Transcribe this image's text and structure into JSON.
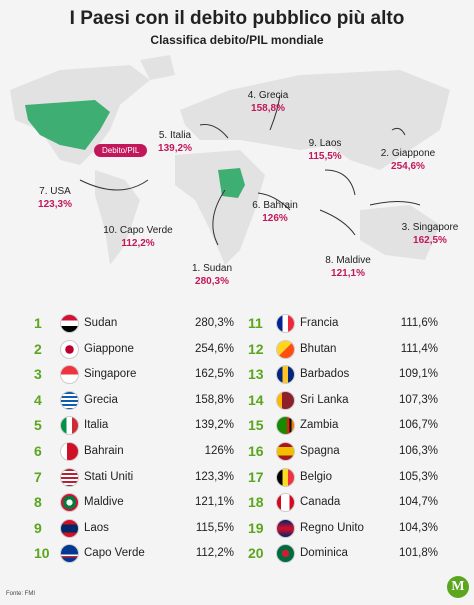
{
  "header": {
    "title": "I Paesi con il debito pubblico più alto",
    "subtitle": "Classifica debito/PIL mondiale"
  },
  "map": {
    "legend": "Debito/PIL",
    "labels": [
      {
        "name": "1. Sudan",
        "value": "280,3%"
      },
      {
        "name": "2. Giappone",
        "value": "254,6%"
      },
      {
        "name": "3. Singapore",
        "value": "162,5%"
      },
      {
        "name": "4. Grecia",
        "value": "158,8%"
      },
      {
        "name": "5. Italia",
        "value": "139,2%"
      },
      {
        "name": "6. Bahrain",
        "value": "126%"
      },
      {
        "name": "7. USA",
        "value": "123,3%"
      },
      {
        "name": "8. Maldive",
        "value": "121,1%"
      },
      {
        "name": "9. Laos",
        "value": "115,5%"
      },
      {
        "name": "10. Capo Verde",
        "value": "112,2%"
      }
    ]
  },
  "table": {
    "rows": [
      [
        "1",
        "Sudan",
        "280,3%"
      ],
      [
        "2",
        "Giappone",
        "254,6%"
      ],
      [
        "3",
        "Singapore",
        "162,5%"
      ],
      [
        "4",
        "Grecia",
        "158,8%"
      ],
      [
        "5",
        "Italia",
        "139,2%"
      ],
      [
        "6",
        "Bahrain",
        "126%"
      ],
      [
        "7",
        "Stati Uniti",
        "123,3%"
      ],
      [
        "8",
        "Maldive",
        "121,1%"
      ],
      [
        "9",
        "Laos",
        "115,5%"
      ],
      [
        "10",
        "Capo Verde",
        "112,2%"
      ],
      [
        "11",
        "Francia",
        "111,6%"
      ],
      [
        "12",
        "Bhutan",
        "111,4%"
      ],
      [
        "13",
        "Barbados",
        "109,1%"
      ],
      [
        "14",
        "Sri Lanka",
        "107,3%"
      ],
      [
        "15",
        "Zambia",
        "106,7%"
      ],
      [
        "16",
        "Spagna",
        "106,3%"
      ],
      [
        "17",
        "Belgio",
        "105,3%"
      ],
      [
        "18",
        "Canada",
        "104,7%"
      ],
      [
        "19",
        "Regno Unito",
        "104,3%"
      ],
      [
        "20",
        "Dominica",
        "101,8%"
      ]
    ]
  },
  "footer": {
    "source": "Fonte: FMI",
    "logo": "M"
  }
}
